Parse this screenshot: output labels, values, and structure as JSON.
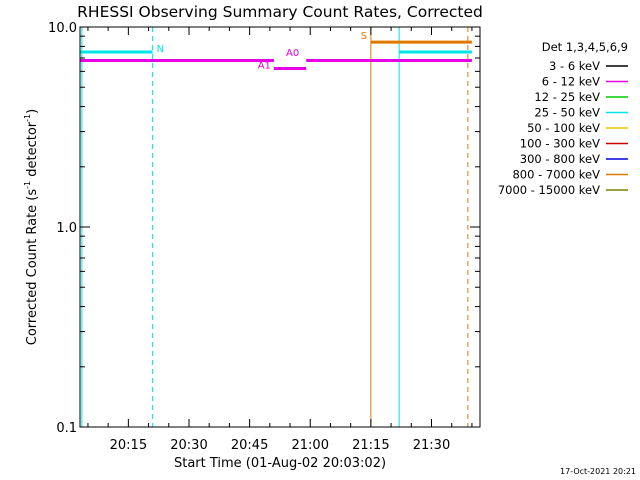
{
  "chart_data": {
    "type": "line",
    "title": "RHESSI Observing Summary Count Rates, Corrected",
    "xlabel": "Start Time (01-Aug-02 20:03:02)",
    "ylabel_main": "Corrected Count Rate (s",
    "ylabel_sup1": "-1",
    "ylabel_mid": " detector",
    "ylabel_sup2": "-1",
    "ylabel_end": ")",
    "yscale": "log",
    "ylim": [
      0.1,
      10.0
    ],
    "xlim": [
      "20:03:02",
      "21:42:00"
    ],
    "x_ticks": [
      "20:15",
      "20:30",
      "20:45",
      "21:00",
      "21:15",
      "21:30"
    ],
    "y_ticks": [
      "0.1",
      "1.0",
      "10.0"
    ],
    "legend_title": "Det 1,3,4,5,6,9",
    "legend_position": "right",
    "legend": [
      {
        "label": "3 - 6 keV",
        "color": "#000000"
      },
      {
        "label": "6 - 12 keV",
        "color": "#e600e6"
      },
      {
        "label": "12 - 25 keV",
        "color": "#00cc00"
      },
      {
        "label": "25 - 50 keV",
        "color": "#00e5e5"
      },
      {
        "label": "50 - 100 keV",
        "color": "#e6c800"
      },
      {
        "label": "100 - 300 keV",
        "color": "#cc0000"
      },
      {
        "label": "300 - 800 keV",
        "color": "#0000dd"
      },
      {
        "label": "800 - 7000 keV",
        "color": "#e07800"
      },
      {
        "label": "7000 - 15000 keV",
        "color": "#808000"
      }
    ],
    "series": [
      {
        "name": "25 - 50 keV",
        "color": "#00e5e5",
        "points": [
          [
            "20:03:02",
            7.5
          ],
          [
            "20:21:00",
            7.5
          ]
        ]
      },
      {
        "name": "25 - 50 keV",
        "color": "#00e5e5",
        "points": [
          [
            "21:22:00",
            7.5
          ],
          [
            "21:40:00",
            7.5
          ]
        ]
      },
      {
        "name": "6 - 12 keV",
        "color": "#e600e6",
        "points": [
          [
            "20:03:02",
            6.8
          ],
          [
            "20:51:00",
            6.8
          ]
        ]
      },
      {
        "name": "6 - 12 keV",
        "color": "#e600e6",
        "points": [
          [
            "20:51:00",
            6.2
          ],
          [
            "20:59:00",
            6.2
          ]
        ]
      },
      {
        "name": "6 - 12 keV",
        "color": "#e600e6",
        "points": [
          [
            "20:59:00",
            6.8
          ],
          [
            "21:40:00",
            6.8
          ]
        ]
      },
      {
        "name": "800 - 7000 keV",
        "color": "#e07800",
        "points": [
          [
            "21:15:00",
            8.4
          ],
          [
            "21:40:00",
            8.4
          ]
        ]
      }
    ],
    "vertical_lines": [
      {
        "x": "20:03:30",
        "color": "#00e5e5",
        "style": "solid"
      },
      {
        "x": "20:21:00",
        "color": "#00e5e5",
        "style": "dashed"
      },
      {
        "x": "21:22:00",
        "color": "#00e5e5",
        "style": "solid"
      },
      {
        "x": "21:15:00",
        "color": "#e07800",
        "style": "solid"
      },
      {
        "x": "21:39:00",
        "color": "#e07800",
        "style": "dashed"
      }
    ],
    "annotations": [
      {
        "text": "N",
        "x": "20:22:00",
        "y": 7.5,
        "color": "#00e5e5"
      },
      {
        "text": "A0",
        "x": "20:54:00",
        "y": 7.15,
        "color": "#e600e6"
      },
      {
        "text": "A1",
        "x": "20:47:00",
        "y": 6.2,
        "color": "#e600e6"
      },
      {
        "text": "S",
        "x": "21:12:30",
        "y": 8.7,
        "color": "#e07800"
      }
    ]
  },
  "footer": {
    "timestamp": "17-Oct-2021 20:21"
  }
}
